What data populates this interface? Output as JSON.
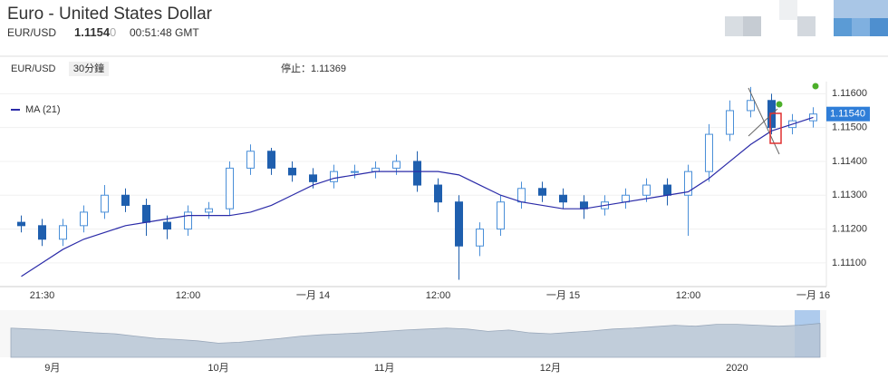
{
  "header": {
    "title": "Euro - United States Dollar",
    "symbol": "EUR/USD",
    "price_main": "1.1154",
    "price_last_digit": "0",
    "time": "00:51:48 GMT"
  },
  "chart_data": {
    "type": "candlestick",
    "symbol_label": "EUR/USD",
    "interval": "30分鐘",
    "stop_label": "停止：1.11369",
    "last_label": "1.11540",
    "categories": [
      null,
      "21:30",
      null,
      null,
      null,
      null,
      null,
      null,
      "12:00",
      null,
      null,
      null,
      null,
      null,
      "一月 14",
      null,
      null,
      null,
      null,
      null,
      "12:00",
      null,
      null,
      null,
      null,
      null,
      "一月 15",
      null,
      null,
      null,
      null,
      null,
      "12:00",
      null,
      null,
      null,
      null,
      null,
      "一月 16"
    ],
    "open": [
      1.1122,
      1.1121,
      1.1117,
      1.1121,
      1.1125,
      1.113,
      1.1127,
      1.1122,
      1.112,
      1.1125,
      1.1126,
      1.1138,
      1.1143,
      1.1138,
      1.1136,
      1.1134,
      1.1137,
      1.1137,
      1.1138,
      1.114,
      1.1133,
      1.1128,
      1.1115,
      1.112,
      1.1128,
      1.1132,
      1.113,
      1.1128,
      1.1126,
      1.1128,
      1.113,
      1.1133,
      1.113,
      1.1137,
      1.1148,
      1.1155,
      1.1158,
      1.115,
      1.1152
    ],
    "high": [
      1.1124,
      1.1123,
      1.1123,
      1.1127,
      1.1133,
      1.1132,
      1.1129,
      1.1124,
      1.1127,
      1.1128,
      1.114,
      1.1145,
      1.1144,
      1.114,
      1.1138,
      1.1139,
      1.1139,
      1.114,
      1.1142,
      1.1143,
      1.1135,
      1.113,
      1.1122,
      1.113,
      1.1134,
      1.1134,
      1.1132,
      1.113,
      1.113,
      1.1132,
      1.1135,
      1.1135,
      1.1139,
      1.1151,
      1.1158,
      1.1162,
      1.116,
      1.1154,
      1.1156
    ],
    "low": [
      1.1119,
      1.1115,
      1.1115,
      1.1119,
      1.1123,
      1.1125,
      1.1118,
      1.1117,
      1.1118,
      1.1123,
      1.1124,
      1.1136,
      1.1136,
      1.1134,
      1.1132,
      1.1132,
      1.1135,
      1.1135,
      1.1136,
      1.1131,
      1.1125,
      1.1105,
      1.1112,
      1.1118,
      1.1126,
      1.1128,
      1.1126,
      1.1123,
      1.1124,
      1.1126,
      1.1128,
      1.1127,
      1.1118,
      1.1134,
      1.1146,
      1.1153,
      1.1148,
      1.1148,
      1.115
    ],
    "close": [
      1.1121,
      1.1117,
      1.1121,
      1.1125,
      1.113,
      1.1127,
      1.1122,
      1.112,
      1.1125,
      1.1126,
      1.1138,
      1.1143,
      1.1138,
      1.1136,
      1.1134,
      1.1137,
      1.1137,
      1.1138,
      1.114,
      1.1133,
      1.1128,
      1.1115,
      1.112,
      1.1128,
      1.1132,
      1.113,
      1.1128,
      1.1126,
      1.1128,
      1.113,
      1.1133,
      1.113,
      1.1137,
      1.1148,
      1.1155,
      1.1158,
      1.115,
      1.1152,
      1.1154
    ],
    "up_color": "#4a8fd8",
    "down_color": "#1f5fae",
    "series": [
      {
        "name": "MA (21)",
        "color": "#2b2ba8",
        "values": [
          1.1106,
          1.111,
          1.1114,
          1.1117,
          1.1119,
          1.1121,
          1.1122,
          1.1123,
          1.1124,
          1.1124,
          1.1124,
          1.1125,
          1.1127,
          1.113,
          1.1133,
          1.1135,
          1.1136,
          1.1137,
          1.1137,
          1.1137,
          1.1137,
          1.1136,
          1.1133,
          1.113,
          1.1128,
          1.1127,
          1.1126,
          1.1126,
          1.1127,
          1.1128,
          1.1129,
          1.113,
          1.1131,
          1.1135,
          1.114,
          1.1145,
          1.1149,
          1.1151,
          1.1153
        ]
      }
    ],
    "ylim": [
      1.1103,
      1.117
    ],
    "yticks": [
      {
        "value": 1.111,
        "label": "1.11100"
      },
      {
        "value": 1.112,
        "label": "1.11200"
      },
      {
        "value": 1.113,
        "label": "1.11300"
      },
      {
        "value": 1.114,
        "label": "1.11400"
      },
      {
        "value": 1.115,
        "label": "1.11500"
      },
      {
        "value": 1.116,
        "label": "1.11600"
      }
    ],
    "navigator": {
      "categories": [
        null,
        null,
        "9月",
        null,
        null,
        null,
        null,
        null,
        null,
        null,
        "10月",
        null,
        null,
        null,
        null,
        null,
        null,
        null,
        "11月",
        null,
        null,
        null,
        null,
        null,
        null,
        null,
        "12月",
        null,
        null,
        null,
        null,
        null,
        null,
        null,
        null,
        "2020",
        null,
        null,
        null,
        null
      ],
      "values": [
        62,
        60,
        58,
        55,
        52,
        50,
        45,
        40,
        38,
        35,
        30,
        32,
        36,
        40,
        45,
        48,
        50,
        52,
        55,
        58,
        60,
        62,
        60,
        55,
        58,
        52,
        50,
        53,
        56,
        60,
        62,
        65,
        68,
        66,
        70,
        70,
        68,
        66,
        68,
        72
      ],
      "ylim": [
        0,
        100
      ],
      "color": "#b8c6d6"
    }
  }
}
